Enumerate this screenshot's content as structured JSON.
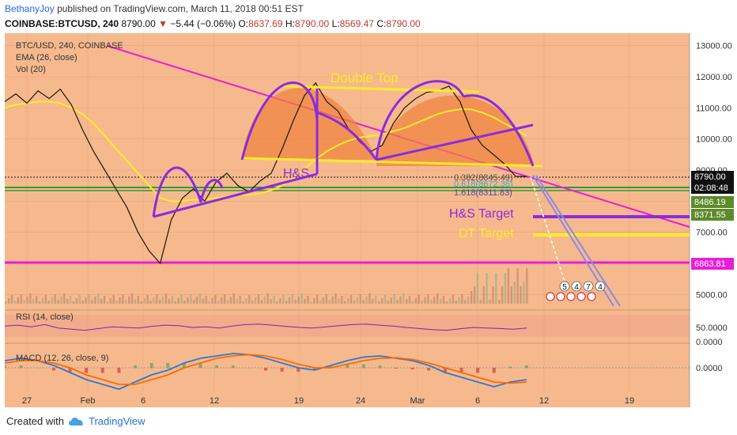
{
  "header": {
    "user": "BethanyJoy",
    "published": "published on TradingView.com, March 11, 2018 00:51 EST",
    "symbol": "COINBASE:BTCUSD, 240",
    "last": "8790.00",
    "change_arrow": "▼",
    "change": "−5.44 (−0.06%)",
    "o_label": "O:",
    "o": "8637.69",
    "h_label": "H:",
    "h": "8790.00",
    "l_label": "L:",
    "l": "8569.47",
    "c_label": "C:",
    "c": "8790.00"
  },
  "legend": {
    "main": "BTC/USD, 240, COINBASE",
    "ema": "EMA (26, close)",
    "vol": "Vol (20)",
    "rsi": "RSI (14, close)",
    "macd": "MACD (12, 26, close, 9)"
  },
  "annotations": {
    "double_top": "Double Top",
    "hs": "H&S",
    "hs_target": "H&S Target",
    "dt_target": "DT Target",
    "fib_0382": "0.382(8845.49)",
    "fib_0618": "0.618(8672.36)",
    "fib_1618": "1.618(8311.83)",
    "marker_counts": [
      "5",
      "4",
      "7",
      "4"
    ]
  },
  "footer": {
    "created_with": "Created with",
    "brand": "TradingView"
  },
  "chart_data": [
    {
      "type": "line",
      "title": "BTC/USD, 240, COINBASE",
      "x_ticks": [
        "27",
        "Feb",
        "6",
        "12",
        "19",
        "24",
        "Mar",
        "6",
        "12",
        "19"
      ],
      "y_ticks": [
        5000,
        6000,
        7000,
        8000,
        9000,
        10000,
        11000,
        12000,
        13000
      ],
      "ylim": [
        4500,
        13400
      ],
      "price_labels": [
        {
          "value": "8790.00",
          "color": "#111111"
        },
        {
          "value": "02:08:48",
          "color": "#111111"
        },
        {
          "value": "8486.19",
          "color": "#5d8a2a"
        },
        {
          "value": "8371.55",
          "color": "#5d8a2a"
        },
        {
          "value": "6863.81",
          "color": "#e91ed8"
        }
      ],
      "series": [
        {
          "name": "BTC/USD",
          "values": [
            11200,
            11450,
            11150,
            11550,
            11300,
            11600,
            11100,
            10300,
            9600,
            9000,
            8400,
            7800,
            7000,
            6400,
            6000,
            7400,
            8100,
            8400,
            8000,
            8600,
            8900,
            8500,
            8300,
            8650,
            8900,
            9700,
            10600,
            11400,
            11800,
            11200,
            10900,
            10300,
            9900,
            9600,
            9800,
            10500,
            11000,
            11300,
            11500,
            11550,
            11700,
            11200,
            10300,
            9800,
            9500,
            9200,
            8800,
            8790
          ]
        },
        {
          "name": "EMA (26, close)",
          "values": [
            11000,
            11100,
            11150,
            11200,
            11200,
            11150,
            11000,
            10800,
            10500,
            10100,
            9700,
            9300,
            8900,
            8500,
            8100,
            8000,
            8000,
            8050,
            8050,
            8100,
            8150,
            8200,
            8200,
            8250,
            8350,
            8500,
            8750,
            9050,
            9350,
            9600,
            9800,
            9950,
            10050,
            10100,
            10150,
            10250,
            10350,
            10500,
            10650,
            10800,
            10900,
            10950,
            10950,
            10850,
            10700,
            10500,
            10300,
            10100
          ]
        }
      ]
    },
    {
      "type": "line",
      "title": "RSI (14, close)",
      "y_ticks": [
        "50.0000",
        "0.0000"
      ],
      "ylim": [
        0,
        100
      ],
      "series": [
        {
          "name": "RSI",
          "values": [
            55,
            58,
            52,
            60,
            48,
            44,
            40,
            46,
            52,
            50,
            48,
            54,
            58,
            56,
            50,
            52,
            48,
            55,
            60,
            62,
            58,
            54,
            50,
            48,
            52,
            56,
            60,
            62,
            58,
            55,
            50,
            46,
            42,
            40,
            45,
            50,
            48,
            46,
            44,
            48
          ]
        }
      ]
    },
    {
      "type": "line",
      "title": "MACD (12, 26, close, 9)",
      "y_ticks": [
        "0.0000"
      ],
      "series": [
        {
          "name": "MACD",
          "values": [
            0.3,
            0.4,
            0.3,
            0.1,
            -0.2,
            -0.5,
            -0.7,
            -0.9,
            -0.6,
            -0.3,
            -0.1,
            0.2,
            0.4,
            0.5,
            0.6,
            0.55,
            0.4,
            0.2,
            0.0,
            -0.1,
            0.1,
            0.3,
            0.45,
            0.5,
            0.4,
            0.3,
            0.1,
            -0.2,
            -0.4,
            -0.6,
            -0.8,
            -0.6,
            -0.5
          ]
        },
        {
          "name": "Signal",
          "values": [
            0.2,
            0.3,
            0.3,
            0.2,
            0.0,
            -0.3,
            -0.5,
            -0.7,
            -0.7,
            -0.5,
            -0.3,
            0.0,
            0.2,
            0.4,
            0.5,
            0.55,
            0.5,
            0.35,
            0.15,
            0.0,
            0.0,
            0.15,
            0.3,
            0.4,
            0.42,
            0.35,
            0.2,
            0.0,
            -0.2,
            -0.4,
            -0.6,
            -0.65,
            -0.6
          ]
        }
      ]
    }
  ],
  "colors": {
    "background": "#f6b98d",
    "price": "#2d1f10",
    "ema": "#ffea2a",
    "pattern": "#8a2be2",
    "trend": "#e91ed8",
    "dt_fill": "#f0823c",
    "support_green": "#2f9a3a",
    "macd": "#2a7ad5",
    "signal": "#ff6a00",
    "rsi": "#7a2aa0"
  }
}
